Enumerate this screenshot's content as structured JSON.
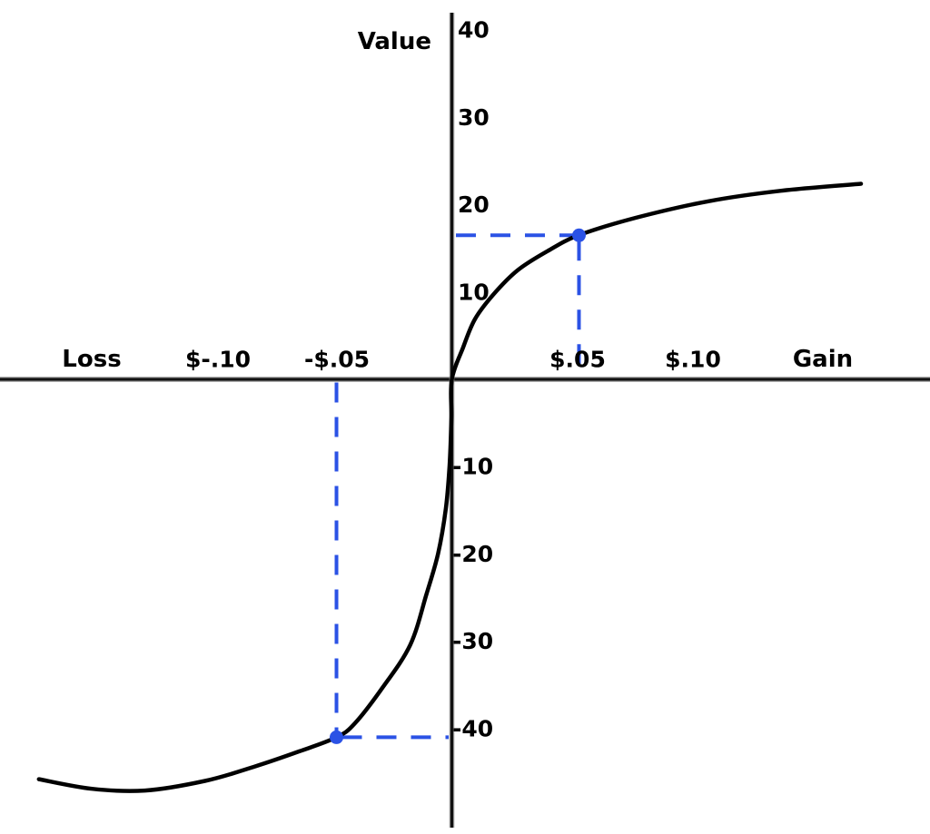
{
  "chart_data": {
    "type": "line",
    "title": "Value",
    "description": "Prospect theory value function: S-shaped curve through the origin, concave for gains and convex (and steeper) for losses",
    "xlabel_left": "Loss",
    "xlabel_right": "Gain",
    "x_ticks": [
      {
        "label": "$-.10",
        "value": -0.1
      },
      {
        "label": "-$.05",
        "value": -0.05
      },
      {
        "label": "$.05",
        "value": 0.05
      },
      {
        "label": "$.10",
        "value": 0.1
      }
    ],
    "y_ticks": [
      {
        "label": "40",
        "value": 40
      },
      {
        "label": "30",
        "value": 30
      },
      {
        "label": "20",
        "value": 20
      },
      {
        "label": "10",
        "value": 10
      },
      {
        "label": "-10",
        "value": -10
      },
      {
        "label": "-20",
        "value": -20
      },
      {
        "label": "-30",
        "value": -30
      },
      {
        "label": "-40",
        "value": -40
      }
    ],
    "series": [
      {
        "name": "value function",
        "points": [
          [
            -0.179,
            -45.8
          ],
          [
            -0.156,
            -46.9
          ],
          [
            -0.133,
            -47.1
          ],
          [
            -0.107,
            -46.0
          ],
          [
            -0.086,
            -44.4
          ],
          [
            -0.066,
            -42.6
          ],
          [
            -0.05,
            -41.0
          ],
          [
            -0.042,
            -39.4
          ],
          [
            -0.03,
            -35.3
          ],
          [
            -0.018,
            -30.4
          ],
          [
            -0.011,
            -24.6
          ],
          [
            -0.006,
            -20.0
          ],
          [
            -0.0026,
            -14.8
          ],
          [
            -0.001,
            -9.9
          ],
          [
            -0.0002,
            -4.4
          ],
          [
            0.0,
            0.0
          ],
          [
            0.0045,
            3.7
          ],
          [
            0.0091,
            6.9
          ],
          [
            0.0163,
            9.7
          ],
          [
            0.0259,
            12.5
          ],
          [
            0.0377,
            14.7
          ],
          [
            0.0498,
            16.5
          ],
          [
            0.0723,
            18.5
          ],
          [
            0.1009,
            20.4
          ],
          [
            0.1295,
            21.6
          ],
          [
            0.1609,
            22.4
          ]
        ]
      }
    ],
    "annotations": [
      {
        "name": "gain-point",
        "x": 0.05,
        "x_label": "$.05",
        "value": 16.5,
        "note": "gain of $.05 maps to value of about +16"
      },
      {
        "name": "loss-point",
        "x": -0.05,
        "x_label": "-$.05",
        "value": -41,
        "note": "loss of $.05 maps to value of about -41"
      }
    ],
    "axis": {
      "xlim": [
        -0.196,
        0.188
      ],
      "ylim": [
        -52,
        42
      ],
      "grid": false
    },
    "colors": {
      "curve": "#000000",
      "guide": "#2b52e5",
      "axis": "#111111",
      "text": "#000000",
      "background": "#ffffff"
    }
  }
}
